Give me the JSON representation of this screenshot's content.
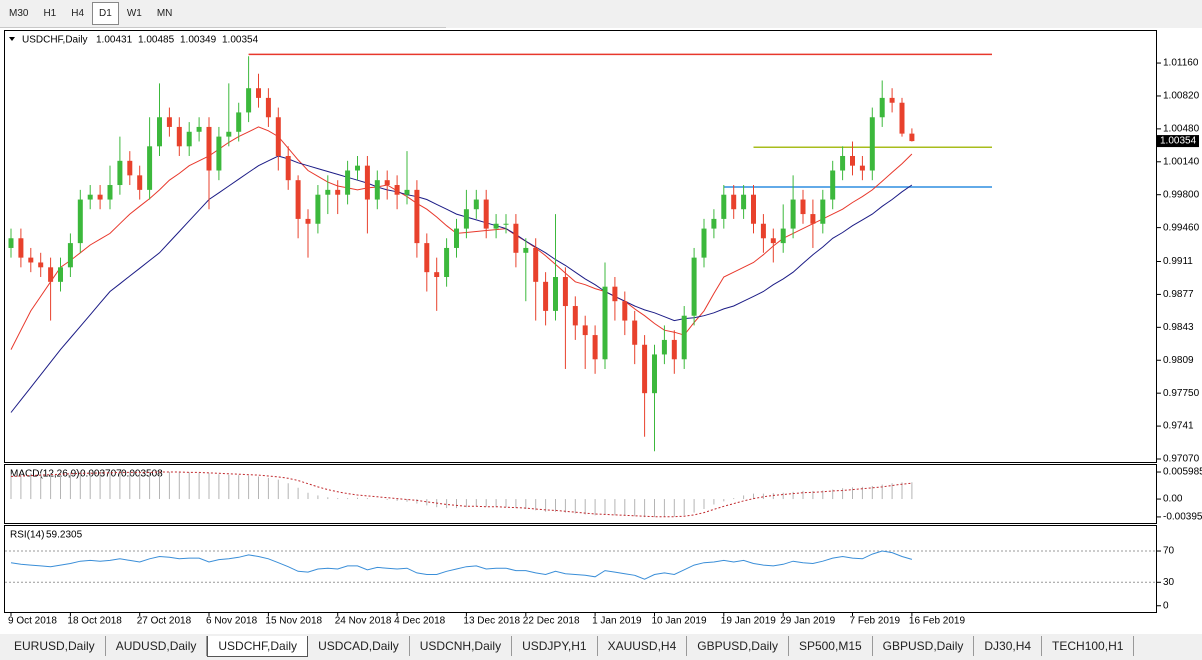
{
  "toolbar": {
    "timeframes": [
      "M30",
      "H1",
      "H4",
      "D1",
      "W1",
      "MN"
    ],
    "active": "D1"
  },
  "chart_data": [
    {
      "type": "candlestick",
      "title": "USDCHF,Daily",
      "categories": [
        "9 Oct 2018",
        null,
        null,
        null,
        null,
        null,
        "18 Oct 2018",
        null,
        null,
        null,
        null,
        null,
        null,
        "27 Oct 2018",
        null,
        null,
        null,
        null,
        null,
        null,
        "6 Nov 2018",
        null,
        null,
        null,
        null,
        null,
        "15 Nov 2018",
        null,
        null,
        null,
        null,
        null,
        null,
        "24 Nov 2018",
        null,
        null,
        null,
        null,
        null,
        "4 Dec 2018",
        null,
        null,
        null,
        null,
        null,
        null,
        "13 Dec 2018",
        null,
        null,
        null,
        null,
        null,
        "22 Dec 2018",
        null,
        null,
        null,
        null,
        null,
        null,
        "1 Jan 2019",
        null,
        null,
        null,
        null,
        null,
        "10 Jan 2019",
        null,
        null,
        null,
        null,
        null,
        null,
        "19 Jan 2019",
        null,
        null,
        null,
        null,
        null,
        "29 Jan 2019",
        null,
        null,
        null,
        null,
        null,
        null,
        "7 Feb 2019",
        null,
        null,
        null,
        null,
        null,
        "16 Feb 2019"
      ],
      "open": [
        0.9925,
        0.9935,
        0.9915,
        0.991,
        0.9905,
        0.989,
        0.9905,
        0.993,
        0.9975,
        0.998,
        0.9975,
        0.999,
        1.0015,
        1.0,
        0.9985,
        1.003,
        1.006,
        1.005,
        1.003,
        1.0045,
        1.005,
        1.0005,
        1.004,
        1.0045,
        1.0065,
        1.009,
        1.008,
        1.006,
        1.002,
        0.9995,
        0.9955,
        0.995,
        0.998,
        0.9985,
        0.998,
        1.0005,
        1.001,
        0.9975,
        0.9995,
        0.999,
        0.998,
        0.9985,
        0.993,
        0.99,
        0.9895,
        0.9925,
        0.9945,
        0.9965,
        0.9975,
        0.9945,
        0.995,
        0.995,
        0.992,
        0.9925,
        0.989,
        0.986,
        0.9895,
        0.9865,
        0.9845,
        0.9835,
        0.981,
        0.9885,
        0.987,
        0.985,
        0.9825,
        0.9775,
        0.9815,
        0.983,
        0.981,
        0.9855,
        0.9915,
        0.9945,
        0.9955,
        0.998,
        0.9965,
        0.998,
        0.995,
        0.9935,
        0.993,
        0.9945,
        0.9975,
        0.996,
        0.995,
        0.9975,
        1.0005,
        1.002,
        1.001,
        1.0005,
        1.006,
        1.008,
        1.0075,
        1.00431
      ],
      "high": [
        0.9945,
        0.9945,
        0.9925,
        0.992,
        0.9915,
        0.9915,
        0.994,
        0.9985,
        0.999,
        0.999,
        1.001,
        1.004,
        1.0025,
        1.001,
        1.006,
        1.0095,
        1.007,
        1.006,
        1.0055,
        1.006,
        1.006,
        1.005,
        1.0095,
        1.0075,
        1.0123,
        1.0105,
        1.009,
        1.007,
        1.003,
        1.0,
        0.9965,
        0.999,
        1.0,
        0.9995,
        1.0015,
        1.002,
        1.002,
        1.0005,
        1.0005,
        1.0,
        1.0025,
        0.9995,
        0.994,
        0.9915,
        0.9935,
        0.9955,
        0.9985,
        0.9985,
        0.9985,
        0.996,
        0.996,
        0.996,
        0.9935,
        0.9935,
        0.99,
        0.996,
        0.9905,
        0.9875,
        0.9855,
        0.9845,
        0.991,
        0.9895,
        0.988,
        0.986,
        0.9835,
        0.9825,
        0.9845,
        0.984,
        0.9865,
        0.9925,
        0.9955,
        0.9965,
        0.999,
        0.999,
        0.999,
        0.999,
        0.996,
        0.9945,
        0.997,
        1.0,
        0.9985,
        0.9975,
        0.9985,
        1.0015,
        1.003,
        1.0035,
        1.002,
        1.007,
        1.0098,
        1.009,
        1.008,
        1.00485
      ],
      "low": [
        0.9915,
        0.9905,
        0.99,
        0.9895,
        0.985,
        0.988,
        0.9895,
        0.992,
        0.9965,
        0.9965,
        0.9965,
        0.998,
        0.999,
        0.9975,
        0.9975,
        1.002,
        1.004,
        1.002,
        1.002,
        1.0035,
        0.9965,
        0.9995,
        1.003,
        1.0035,
        1.0055,
        1.007,
        1.005,
        1.0005,
        0.9985,
        0.9935,
        0.9915,
        0.994,
        0.996,
        0.996,
        0.997,
        0.9995,
        0.994,
        0.9965,
        0.9975,
        0.9965,
        0.997,
        0.9915,
        0.988,
        0.986,
        0.9885,
        0.9915,
        0.9935,
        0.9955,
        0.9935,
        0.9935,
        0.994,
        0.9905,
        0.987,
        0.985,
        0.9845,
        0.985,
        0.98,
        0.983,
        0.98,
        0.9795,
        0.98,
        0.985,
        0.9835,
        0.9805,
        0.973,
        0.9715,
        0.9805,
        0.9795,
        0.98,
        0.9845,
        0.9905,
        0.9935,
        0.9945,
        0.9955,
        0.9955,
        0.994,
        0.992,
        0.991,
        0.992,
        0.9935,
        0.995,
        0.9925,
        0.994,
        0.9965,
        0.9995,
        1.0,
        0.9995,
        0.9995,
        1.005,
        1.0065,
        1.004,
        1.00349
      ],
      "close": [
        0.9935,
        0.9915,
        0.991,
        0.9905,
        0.989,
        0.9905,
        0.993,
        0.9975,
        0.998,
        0.9975,
        0.999,
        1.0015,
        1.0,
        0.9985,
        1.003,
        1.006,
        1.005,
        1.003,
        1.0045,
        1.005,
        1.0005,
        1.004,
        1.0045,
        1.0065,
        1.009,
        1.008,
        1.006,
        1.002,
        0.9995,
        0.9955,
        0.995,
        0.998,
        0.9985,
        0.998,
        1.0005,
        1.001,
        0.9975,
        0.9995,
        0.999,
        0.998,
        0.9985,
        0.993,
        0.99,
        0.9895,
        0.9925,
        0.9945,
        0.9965,
        0.9975,
        0.9945,
        0.995,
        0.995,
        0.992,
        0.9925,
        0.989,
        0.986,
        0.9895,
        0.9865,
        0.9845,
        0.9835,
        0.981,
        0.9885,
        0.987,
        0.985,
        0.9825,
        0.9775,
        0.9815,
        0.983,
        0.981,
        0.9855,
        0.9915,
        0.9945,
        0.9955,
        0.998,
        0.9965,
        0.998,
        0.995,
        0.9935,
        0.993,
        0.9945,
        0.9975,
        0.996,
        0.995,
        0.9975,
        1.0005,
        1.002,
        1.001,
        1.0005,
        1.006,
        1.008,
        1.0075,
        1.00431,
        1.00354
      ],
      "up_color": "#3cb83c",
      "down_color": "#e8412c",
      "moving_averages": [
        {
          "color": "#e8382c",
          "values": [
            0.982,
            0.984,
            0.986,
            0.9875,
            0.989,
            0.9905,
            0.9912,
            0.992,
            0.9928,
            0.9934,
            0.994,
            0.995,
            0.996,
            0.9968,
            0.9976,
            0.9985,
            0.9995,
            1.0002,
            1.001,
            1.0015,
            1.002,
            1.0027,
            1.0034,
            1.004,
            1.0045,
            1.005,
            1.0046,
            1.004,
            1.0028,
            1.0016,
            1.0005,
            0.9999,
            0.9993,
            0.9989,
            0.9987,
            0.9985,
            0.9987,
            0.9988,
            0.999,
            0.9984,
            0.9978,
            0.9971,
            0.9965,
            0.9957,
            0.9948,
            0.994,
            0.9941,
            0.9942,
            0.9943,
            0.9944,
            0.9945,
            0.9938,
            0.9932,
            0.9925,
            0.9917,
            0.9908,
            0.9899,
            0.989,
            0.9887,
            0.9883,
            0.988,
            0.9875,
            0.987,
            0.9862,
            0.9855,
            0.9847,
            0.984,
            0.9838,
            0.9835,
            0.9848,
            0.986,
            0.9878,
            0.9895,
            0.99,
            0.9905,
            0.991,
            0.9918,
            0.9927,
            0.9935,
            0.994,
            0.9945,
            0.995,
            0.9955,
            0.996,
            0.9965,
            0.9972,
            0.9978,
            0.9985,
            0.9994,
            1.0003,
            1.0012,
            1.0022
          ]
        },
        {
          "color": "#1c1c86",
          "values": [
            0.9755,
            0.9768,
            0.9781,
            0.9794,
            0.9807,
            0.982,
            0.9832,
            0.9844,
            0.9856,
            0.9868,
            0.988,
            0.9888,
            0.9896,
            0.9904,
            0.9912,
            0.992,
            0.9931,
            0.9942,
            0.9953,
            0.9964,
            0.9975,
            0.9982,
            0.9989,
            0.9996,
            1.0003,
            1.001,
            1.0015,
            1.002,
            1.0017,
            1.0013,
            1.001,
            1.0007,
            1.0004,
            1.0001,
            0.9998,
            0.9995,
            0.9992,
            0.9988,
            0.9985,
            0.9983,
            0.998,
            0.9978,
            0.9975,
            0.997,
            0.9965,
            0.996,
            0.9957,
            0.9954,
            0.9951,
            0.9948,
            0.9945,
            0.9939,
            0.9932,
            0.9926,
            0.992,
            0.9913,
            0.9907,
            0.99,
            0.9893,
            0.9887,
            0.988,
            0.9875,
            0.987,
            0.9865,
            0.9861,
            0.9858,
            0.9854,
            0.985,
            0.9852,
            0.9853,
            0.9855,
            0.9858,
            0.9862,
            0.9865,
            0.987,
            0.9875,
            0.988,
            0.9887,
            0.9893,
            0.99,
            0.9909,
            0.9918,
            0.9926,
            0.9935,
            0.9941,
            0.9948,
            0.9954,
            0.996,
            0.9968,
            0.9975,
            0.9983,
            0.999
          ]
        }
      ],
      "hlines": [
        {
          "value": 1.0125,
          "start": 24,
          "color": "#e8382c"
        },
        {
          "value": 1.0029,
          "start": 75,
          "color": "#a8bd1c"
        },
        {
          "value": 0.9988,
          "start": 72,
          "color": "#2f8ee0"
        }
      ],
      "ylim": [
        0.97039,
        1.01491
      ],
      "yticks": [
        {
          "value": 1.0116,
          "label": "1.01160"
        },
        {
          "value": 1.0082,
          "label": "1.00820"
        },
        {
          "value": 1.0048,
          "label": "1.00480"
        },
        {
          "value": 1.0014,
          "label": "1.00140"
        },
        {
          "value": 0.998,
          "label": "0.99800"
        },
        {
          "value": 0.9946,
          "label": "0.99460"
        },
        0.9911,
        0.9877,
        0.9843,
        0.9809,
        {
          "value": 0.9775,
          "label": "0.97750"
        },
        0.9741,
        {
          "value": 0.9707,
          "label": "0.97070"
        }
      ]
    },
    {
      "type": "macd",
      "title": "MACD(12,26,9)",
      "histogram": [
        0.0055,
        0.0056,
        0.0057,
        0.0058,
        0.0058,
        0.0058,
        0.0059,
        0.0059,
        0.006,
        0.006,
        0.006,
        0.006,
        0.006,
        0.006,
        0.006,
        0.006,
        0.006,
        0.0059,
        0.0059,
        0.0058,
        0.0057,
        0.0055,
        0.0054,
        0.0053,
        0.0052,
        0.005,
        0.0047,
        0.0043,
        0.0035,
        0.0025,
        0.0014,
        0.0008,
        0.0004,
        0.0002,
        0.0002,
        0.0003,
        0.0002,
        0.0,
        -0.0002,
        -0.0004,
        -0.0006,
        -0.001,
        -0.0014,
        -0.0018,
        -0.002,
        -0.002,
        -0.0018,
        -0.0016,
        -0.0017,
        -0.0018,
        -0.0018,
        -0.002,
        -0.0022,
        -0.0025,
        -0.0028,
        -0.0028,
        -0.003,
        -0.0032,
        -0.0034,
        -0.0036,
        -0.0035,
        -0.0036,
        -0.0037,
        -0.0038,
        -0.004,
        -0.004,
        -0.0039,
        -0.0039,
        -0.0036,
        -0.003,
        -0.0022,
        -0.0012,
        -0.0005,
        0.0002,
        0.0008,
        0.0012,
        0.0012,
        0.0013,
        0.0014,
        0.0016,
        0.0018,
        0.0018,
        0.0019,
        0.0021,
        0.0024,
        0.0026,
        0.0027,
        0.0029,
        0.0032,
        0.0035,
        0.0037,
        0.003707
      ],
      "signal": [
        0.005,
        0.0051,
        0.0052,
        0.0053,
        0.0054,
        0.0055,
        0.0056,
        0.0057,
        0.0057,
        0.0058,
        0.0058,
        0.0059,
        0.0059,
        0.0059,
        0.0059,
        0.006,
        0.006,
        0.006,
        0.0059,
        0.0059,
        0.0058,
        0.0057,
        0.0056,
        0.0055,
        0.0054,
        0.0053,
        0.0051,
        0.0049,
        0.0046,
        0.0041,
        0.0034,
        0.0027,
        0.0021,
        0.0016,
        0.0012,
        0.0009,
        0.0007,
        0.0005,
        0.0003,
        0.0001,
        -0.0001,
        -0.0003,
        -0.0006,
        -0.0009,
        -0.0012,
        -0.0014,
        -0.0016,
        -0.0016,
        -0.0017,
        -0.0017,
        -0.0018,
        -0.0019,
        -0.002,
        -0.0022,
        -0.0024,
        -0.0025,
        -0.0027,
        -0.0029,
        -0.0031,
        -0.0033,
        -0.0034,
        -0.0035,
        -0.0036,
        -0.0037,
        -0.0038,
        -0.0039,
        -0.0039,
        -0.0039,
        -0.0038,
        -0.0035,
        -0.003,
        -0.0023,
        -0.0016,
        -0.001,
        -0.0004,
        0.0001,
        0.0005,
        0.0008,
        0.001,
        0.0012,
        0.0014,
        0.0015,
        0.0016,
        0.0018,
        0.0019,
        0.0021,
        0.0023,
        0.0025,
        0.0027,
        0.003,
        0.0033,
        0.003508
      ],
      "histogram_color": "#b4b4b4",
      "signal_color": "#c0282c",
      "ylim": [
        -0.0053,
        0.00754
      ],
      "yticks": [
        0.005985,
        {
          "value": 0,
          "label": "0.00"
        },
        -0.003954
      ]
    },
    {
      "type": "line",
      "title": "RSI(14)",
      "values": [
        55,
        53,
        52,
        51,
        50,
        52,
        54,
        57,
        58,
        57,
        58,
        60,
        58,
        56,
        60,
        63,
        62,
        60,
        61,
        61,
        56,
        59,
        60,
        62,
        65,
        63,
        60,
        55,
        50,
        44,
        43,
        47,
        48,
        47,
        51,
        51,
        46,
        49,
        48,
        47,
        48,
        42,
        40,
        40,
        44,
        47,
        50,
        51,
        47,
        48,
        48,
        45,
        45,
        42,
        40,
        44,
        41,
        40,
        39,
        37,
        45,
        43,
        41,
        39,
        34,
        40,
        42,
        40,
        46,
        52,
        55,
        56,
        58,
        56,
        58,
        54,
        52,
        51,
        53,
        57,
        55,
        54,
        57,
        61,
        63,
        61,
        60,
        66,
        70,
        68,
        63,
        59.2305
      ],
      "color": "#3a8ed8",
      "levels": [
        70,
        30
      ],
      "ylim": [
        -8,
        102
      ],
      "yticks": [
        70,
        30,
        0
      ]
    }
  ],
  "tabs": [
    "EURUSD,Daily",
    "AUDUSD,Daily",
    "USDCHF,Daily",
    "USDCAD,Daily",
    "USDCNH,Daily",
    "USDJPY,H1",
    "XAUUSD,H4",
    "GBPUSD,Daily",
    "SP500,M15",
    "GBPUSD,Daily",
    "DJ30,H4",
    "TECH100,H1"
  ],
  "active_tab": 2
}
